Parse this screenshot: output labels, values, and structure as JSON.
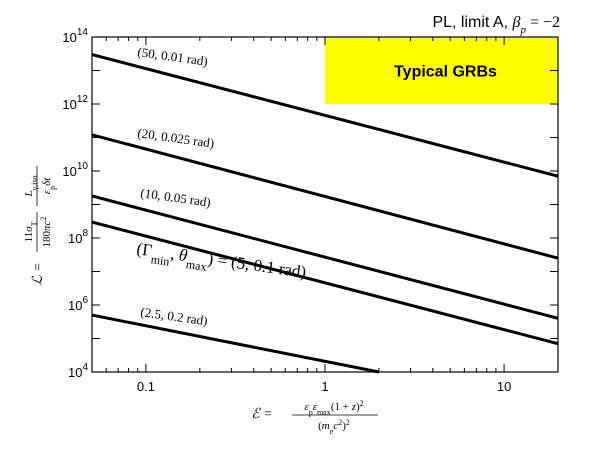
{
  "chart_data": {
    "type": "line",
    "title": "PL, limit A, β_p = −2",
    "xlabel": "ε = ε_p ε_max (1 + z)² / (m_e c²)²",
    "ylabel": "L = (11 σ_T / 180 π c²) · L_γ,iso / (ε_p δt)",
    "x_scale": "log",
    "y_scale": "log",
    "xlim": [
      0.05,
      20
    ],
    "ylim": [
      10000,
      100000000000000
    ],
    "x_ticks": [
      {
        "value": 0.1,
        "label": "0.1"
      },
      {
        "value": 1,
        "label": "1"
      },
      {
        "value": 10,
        "label": "10"
      }
    ],
    "y_ticks": [
      {
        "value": 10000,
        "base": "10",
        "exp": "4"
      },
      {
        "value": 1000000,
        "base": "10",
        "exp": "6"
      },
      {
        "value": 100000000,
        "base": "10",
        "exp": "8"
      },
      {
        "value": 10000000000,
        "base": "10",
        "exp": "10"
      },
      {
        "value": 1000000000000,
        "base": "10",
        "exp": "12"
      },
      {
        "value": 100000000000000,
        "base": "10",
        "exp": "14"
      }
    ],
    "grid": false,
    "legend": "none",
    "series": [
      {
        "name": "(50, 0.01 rad)",
        "x": [
          0.05,
          20
        ],
        "y": [
          30000000000000,
          7000000000
        ]
      },
      {
        "name": "(20, 0.025 rad)",
        "x": [
          0.05,
          20
        ],
        "y": [
          120000000000,
          25000000
        ]
      },
      {
        "name": "(10, 0.05 rad)",
        "x": [
          0.05,
          20
        ],
        "y": [
          1800000000,
          400000
        ]
      },
      {
        "name": "(Γ_min, θ_max) = (5, 0.1 rad)",
        "x": [
          0.05,
          20
        ],
        "y": [
          300000000,
          70000
        ]
      },
      {
        "name": "(2.5, 0.2 rad)",
        "x": [
          0.05,
          2
        ],
        "y": [
          500000,
          10000
        ]
      }
    ],
    "region": {
      "label": "Typical GRBs",
      "color": "#ffff00",
      "xlim": [
        1,
        20
      ],
      "ylim": [
        1000000000000,
        100000000000000
      ]
    }
  }
}
